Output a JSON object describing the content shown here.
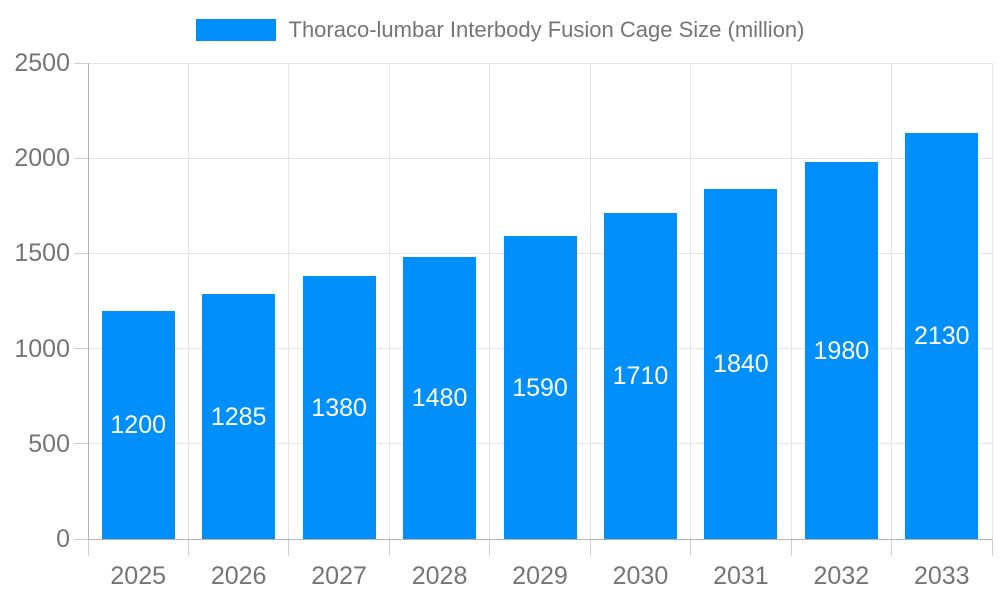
{
  "colors": {
    "bar": "#008FFB",
    "text": "#757575",
    "bar_label": "#FFFFFF",
    "axis": "#B3B3B3",
    "grid": "#E4E4E4",
    "tick": "#CFCFCF",
    "background": "#FFFFFF"
  },
  "chart_data": {
    "type": "bar",
    "title": "Thoraco-lumbar Interbody Fusion Cage Size (million)",
    "series_name": "Thoraco-lumbar Interbody Fusion Cage Size (million)",
    "categories": [
      "2025",
      "2026",
      "2027",
      "2028",
      "2029",
      "2030",
      "2031",
      "2032",
      "2033"
    ],
    "values": [
      1200,
      1285,
      1380,
      1480,
      1590,
      1710,
      1840,
      1980,
      2130
    ],
    "bar_labels": [
      "1200",
      "1285",
      "1380",
      "1480",
      "1590",
      "1710",
      "1840",
      "1980",
      "2130"
    ],
    "xlabel": "",
    "ylabel": "",
    "ylim": [
      0,
      2500
    ],
    "yticks": [
      0,
      500,
      1000,
      1500,
      2000,
      2500
    ],
    "grid": true,
    "legend_position": "top",
    "value_labels": "inside-center"
  }
}
